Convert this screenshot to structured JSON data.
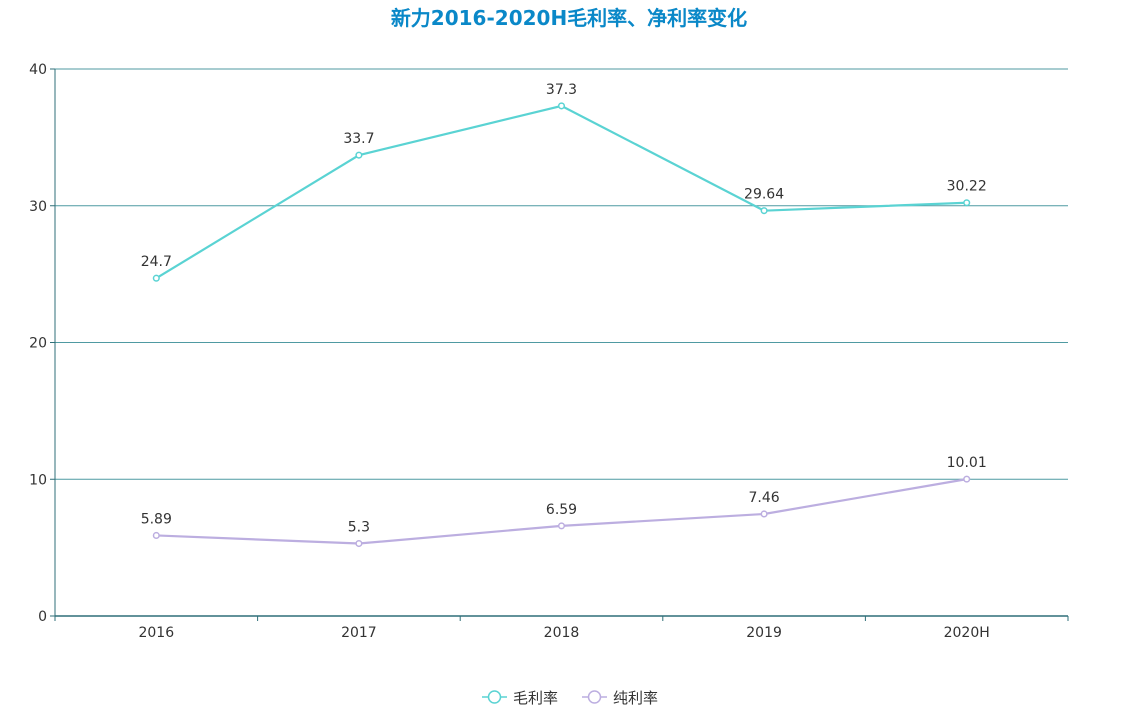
{
  "chart_data": {
    "type": "line",
    "title": "新力2016-2020H毛利率、净利率变化",
    "categories": [
      "2016",
      "2017",
      "2018",
      "2019",
      "2020H"
    ],
    "series": [
      {
        "name": "毛利率",
        "color": "#5ad3d3",
        "values": [
          24.7,
          33.7,
          37.3,
          29.64,
          30.22
        ],
        "labels": [
          "24.7",
          "33.7",
          "37.3",
          "29.64",
          "30.22"
        ]
      },
      {
        "name": "纯利率",
        "color": "#bcaee0",
        "values": [
          5.89,
          5.3,
          6.59,
          7.46,
          10.01
        ],
        "labels": [
          "5.89",
          "5.3",
          "6.59",
          "7.46",
          "10.01"
        ]
      }
    ],
    "yticks": [
      "0",
      "10",
      "20",
      "30",
      "40"
    ],
    "ylim": [
      0,
      40
    ],
    "grid": true,
    "legend": "bottom-center",
    "xlabel": "",
    "ylabel": ""
  }
}
